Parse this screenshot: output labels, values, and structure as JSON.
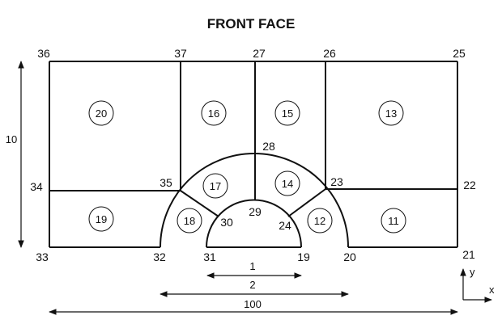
{
  "title": "FRONT FACE",
  "nodes": [
    "36",
    "37",
    "27",
    "26",
    "25",
    "28",
    "35",
    "23",
    "34",
    "22",
    "30",
    "29",
    "24",
    "33",
    "32",
    "31",
    "19",
    "20",
    "21"
  ],
  "regions": [
    "20",
    "16",
    "15",
    "13",
    "17",
    "14",
    "19",
    "18",
    "12",
    "11"
  ],
  "dimensions": {
    "height": "10",
    "inner_span": "1",
    "outer_span": "2",
    "total_width": "100"
  },
  "axes": {
    "x": "x",
    "y": "y"
  }
}
